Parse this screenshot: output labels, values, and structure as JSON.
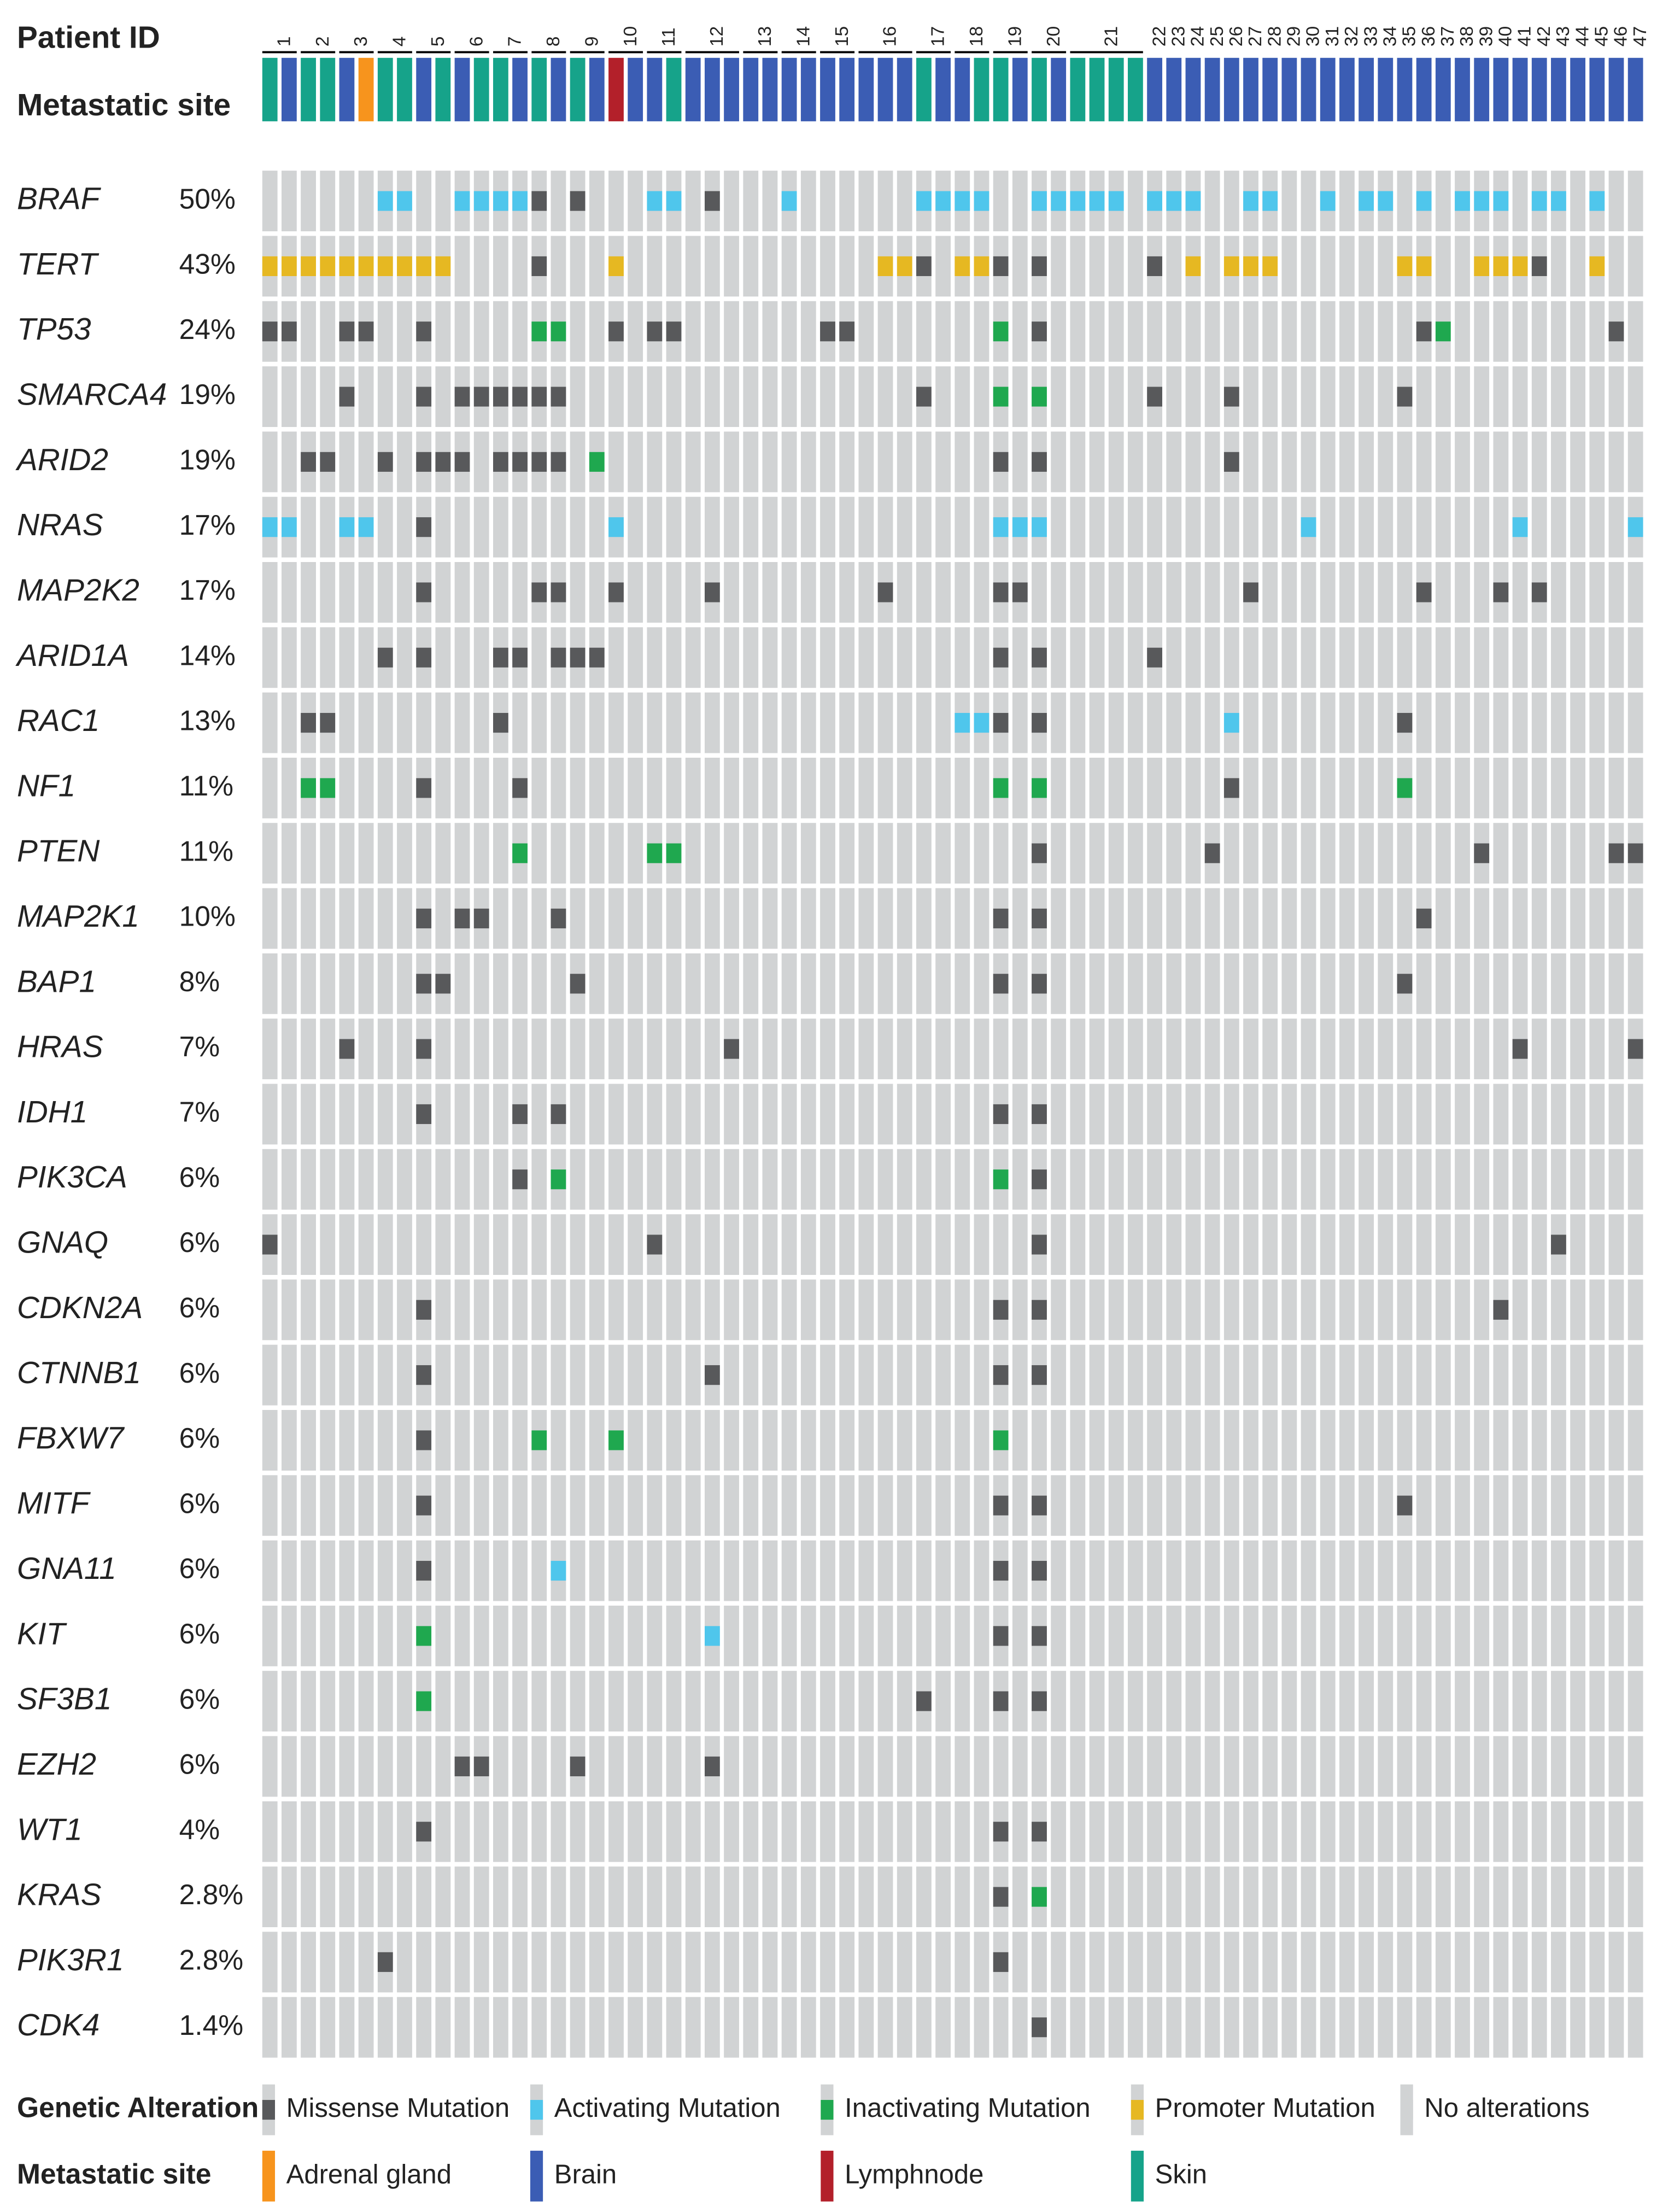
{
  "chart_data": {
    "type": "oncoprint",
    "patient_id_label": "Patient ID",
    "metastatic_site_label": "Metastatic site",
    "patients": [
      {
        "id": "1",
        "samples": 2
      },
      {
        "id": "2",
        "samples": 2
      },
      {
        "id": "3",
        "samples": 2
      },
      {
        "id": "4",
        "samples": 2
      },
      {
        "id": "5",
        "samples": 2
      },
      {
        "id": "6",
        "samples": 2
      },
      {
        "id": "7",
        "samples": 2
      },
      {
        "id": "8",
        "samples": 2
      },
      {
        "id": "9",
        "samples": 2
      },
      {
        "id": "10",
        "samples": 2
      },
      {
        "id": "11",
        "samples": 2
      },
      {
        "id": "12",
        "samples": 3
      },
      {
        "id": "13",
        "samples": 2
      },
      {
        "id": "14",
        "samples": 2
      },
      {
        "id": "15",
        "samples": 2
      },
      {
        "id": "16",
        "samples": 3
      },
      {
        "id": "17",
        "samples": 2
      },
      {
        "id": "18",
        "samples": 2
      },
      {
        "id": "19",
        "samples": 2
      },
      {
        "id": "20",
        "samples": 2
      },
      {
        "id": "21",
        "samples": 4
      },
      {
        "id": "22",
        "samples": 1
      },
      {
        "id": "23",
        "samples": 1
      },
      {
        "id": "24",
        "samples": 1
      },
      {
        "id": "25",
        "samples": 1
      },
      {
        "id": "26",
        "samples": 1
      },
      {
        "id": "27",
        "samples": 1
      },
      {
        "id": "28",
        "samples": 1
      },
      {
        "id": "29",
        "samples": 1
      },
      {
        "id": "30",
        "samples": 1
      },
      {
        "id": "31",
        "samples": 1
      },
      {
        "id": "32",
        "samples": 1
      },
      {
        "id": "33",
        "samples": 1
      },
      {
        "id": "34",
        "samples": 1
      },
      {
        "id": "35",
        "samples": 1
      },
      {
        "id": "36",
        "samples": 1
      },
      {
        "id": "37",
        "samples": 1
      },
      {
        "id": "38",
        "samples": 1
      },
      {
        "id": "39",
        "samples": 1
      },
      {
        "id": "40",
        "samples": 1
      },
      {
        "id": "41",
        "samples": 1
      },
      {
        "id": "42",
        "samples": 1
      },
      {
        "id": "43",
        "samples": 1
      },
      {
        "id": "44",
        "samples": 1
      },
      {
        "id": "45",
        "samples": 1
      },
      {
        "id": "46",
        "samples": 1
      },
      {
        "id": "47",
        "samples": 1
      }
    ],
    "metastatic_sites": [
      "Skin",
      "Brain",
      "Skin",
      "Skin",
      "Brain",
      "Adrenal gland",
      "Skin",
      "Skin",
      "Brain",
      "Skin",
      "Brain",
      "Skin",
      "Skin",
      "Brain",
      "Skin",
      "Brain",
      "Skin",
      "Brain",
      "Lymphnode",
      "Brain",
      "Brain",
      "Skin",
      "Brain",
      "Brain",
      "Brain",
      "Brain",
      "Brain",
      "Brain",
      "Brain",
      "Brain",
      "Brain",
      "Brain",
      "Brain",
      "Brain",
      "Skin",
      "Brain",
      "Brain",
      "Skin",
      "Skin",
      "Brain",
      "Skin",
      "Brain",
      "Skin",
      "Skin",
      "Skin",
      "Skin",
      "Brain",
      "Brain",
      "Brain",
      "Brain",
      "Brain",
      "Brain",
      "Brain",
      "Brain",
      "Brain",
      "Brain",
      "Brain",
      "Brain",
      "Brain",
      "Brain",
      "Brain",
      "Brain",
      "Brain",
      "Brain",
      "Brain",
      "Brain",
      "Brain",
      "Brain",
      "Brain",
      "Brain",
      "Brain",
      "Brain"
    ],
    "genes": [
      {
        "name": "BRAF",
        "frequency": "50%",
        "alterations": {
          "Missense Mutation": [
            14,
            16,
            23
          ],
          "Activating Mutation": [
            6,
            7,
            10,
            11,
            12,
            13,
            20,
            21,
            27,
            34,
            35,
            36,
            37,
            40,
            41,
            42,
            43,
            44,
            46,
            47,
            48,
            51,
            52,
            55,
            57,
            58,
            60,
            62,
            63,
            64,
            66,
            67,
            69
          ]
        }
      },
      {
        "name": "TERT",
        "frequency": "43%",
        "alterations": {
          "Promoter Mutation": [
            0,
            1,
            2,
            3,
            4,
            5,
            6,
            7,
            8,
            9,
            18,
            32,
            33,
            36,
            37,
            48,
            50,
            51,
            52,
            59,
            60,
            63,
            64,
            65,
            69
          ],
          "Missense Mutation": [
            14,
            34,
            38,
            40,
            46,
            66
          ]
        }
      },
      {
        "name": "TP53",
        "frequency": "24%",
        "alterations": {
          "Missense Mutation": [
            0,
            1,
            4,
            5,
            8,
            18,
            20,
            21,
            29,
            30,
            40,
            60,
            70
          ],
          "Inactivating Mutation": [
            14,
            15,
            38,
            61
          ]
        }
      },
      {
        "name": "SMARCA4",
        "frequency": "19%",
        "alterations": {
          "Missense Mutation": [
            4,
            8,
            10,
            11,
            12,
            13,
            14,
            15,
            34,
            46,
            50,
            59
          ],
          "Inactivating Mutation": [
            38,
            40
          ]
        }
      },
      {
        "name": "ARID2",
        "frequency": "19%",
        "alterations": {
          "Missense Mutation": [
            2,
            3,
            6,
            8,
            9,
            10,
            12,
            13,
            14,
            15,
            38,
            40,
            50
          ],
          "Inactivating Mutation": [
            17
          ]
        }
      },
      {
        "name": "NRAS",
        "frequency": "17%",
        "alterations": {
          "Activating Mutation": [
            0,
            1,
            4,
            5,
            18,
            38,
            39,
            40,
            54,
            65,
            71
          ],
          "Missense Mutation": [
            8
          ]
        }
      },
      {
        "name": "MAP2K2",
        "frequency": "17%",
        "alterations": {
          "Missense Mutation": [
            8,
            14,
            15,
            18,
            23,
            32,
            38,
            39,
            51,
            60,
            64,
            66
          ]
        }
      },
      {
        "name": "ARID1A",
        "frequency": "14%",
        "alterations": {
          "Missense Mutation": [
            6,
            8,
            12,
            13,
            15,
            16,
            17,
            38,
            40,
            46
          ]
        }
      },
      {
        "name": "RAC1",
        "frequency": "13%",
        "alterations": {
          "Missense Mutation": [
            2,
            3,
            12,
            38,
            40,
            59
          ],
          "Activating Mutation": [
            36,
            37,
            50
          ]
        }
      },
      {
        "name": "NF1",
        "frequency": "11%",
        "alterations": {
          "Missense Mutation": [
            8,
            13,
            50
          ],
          "Inactivating Mutation": [
            2,
            3,
            38,
            40,
            59
          ]
        }
      },
      {
        "name": "PTEN",
        "frequency": "11%",
        "alterations": {
          "Missense Mutation": [
            40,
            49,
            63,
            70,
            71
          ],
          "Inactivating Mutation": [
            13,
            20,
            21
          ]
        }
      },
      {
        "name": "MAP2K1",
        "frequency": "10%",
        "alterations": {
          "Missense Mutation": [
            8,
            10,
            11,
            15,
            38,
            40,
            60
          ]
        }
      },
      {
        "name": "BAP1",
        "frequency": "8%",
        "alterations": {
          "Missense Mutation": [
            8,
            9,
            16,
            38,
            40,
            59
          ]
        }
      },
      {
        "name": "HRAS",
        "frequency": "7%",
        "alterations": {
          "Missense Mutation": [
            4,
            8,
            24,
            65,
            71
          ]
        }
      },
      {
        "name": "IDH1",
        "frequency": "7%",
        "alterations": {
          "Missense Mutation": [
            8,
            13,
            15,
            38,
            40
          ]
        }
      },
      {
        "name": "PIK3CA",
        "frequency": "6%",
        "alterations": {
          "Missense Mutation": [
            13,
            40
          ],
          "Inactivating Mutation": [
            15,
            38
          ]
        }
      },
      {
        "name": "GNAQ",
        "frequency": "6%",
        "alterations": {
          "Missense Mutation": [
            0,
            20,
            40,
            67
          ]
        }
      },
      {
        "name": "CDKN2A",
        "frequency": "6%",
        "alterations": {
          "Missense Mutation": [
            8,
            38,
            40,
            64
          ]
        }
      },
      {
        "name": "CTNNB1",
        "frequency": "6%",
        "alterations": {
          "Missense Mutation": [
            8,
            23,
            38,
            40
          ]
        }
      },
      {
        "name": "FBXW7",
        "frequency": "6%",
        "alterations": {
          "Missense Mutation": [
            8
          ],
          "Inactivating Mutation": [
            14,
            18,
            38
          ]
        }
      },
      {
        "name": "MITF",
        "frequency": "6%",
        "alterations": {
          "Missense Mutation": [
            8,
            38,
            40,
            59
          ]
        }
      },
      {
        "name": "GNA11",
        "frequency": "6%",
        "alterations": {
          "Missense Mutation": [
            8,
            38,
            40
          ],
          "Activating Mutation": [
            15
          ]
        }
      },
      {
        "name": "KIT",
        "frequency": "6%",
        "alterations": {
          "Missense Mutation": [
            38,
            40
          ],
          "Activating Mutation": [
            23
          ],
          "Inactivating Mutation": [
            8
          ]
        }
      },
      {
        "name": "SF3B1",
        "frequency": "6%",
        "alterations": {
          "Missense Mutation": [
            34,
            38,
            40
          ],
          "Inactivating Mutation": [
            8
          ]
        }
      },
      {
        "name": "EZH2",
        "frequency": "6%",
        "alterations": {
          "Missense Mutation": [
            10,
            11,
            16,
            23
          ]
        }
      },
      {
        "name": "WT1",
        "frequency": "4%",
        "alterations": {
          "Missense Mutation": [
            8,
            38,
            40
          ]
        }
      },
      {
        "name": "KRAS",
        "frequency": "2.8%",
        "alterations": {
          "Missense Mutation": [
            38
          ],
          "Inactivating Mutation": [
            40
          ]
        }
      },
      {
        "name": "PIK3R1",
        "frequency": "2.8%",
        "alterations": {
          "Missense Mutation": [
            6,
            38
          ]
        }
      },
      {
        "name": "CDK4",
        "frequency": "1.4%",
        "alterations": {
          "Missense Mutation": [
            40
          ]
        }
      }
    ],
    "alteration_legend": {
      "title": "Genetic Alteration",
      "items": [
        {
          "label": "Missense Mutation",
          "color": "#58595b"
        },
        {
          "label": "Activating Mutation",
          "color": "#4fc6ec"
        },
        {
          "label": "Inactivating Mutation",
          "color": "#1fa84f"
        },
        {
          "label": "Promoter Mutation",
          "color": "#e6b822"
        },
        {
          "label": "No alterations",
          "color": "#d1d3d4"
        }
      ]
    },
    "site_legend": {
      "title": "Metastatic site",
      "items": [
        {
          "label": "Adrenal gland",
          "color": "#f7941d"
        },
        {
          "label": "Brain",
          "color": "#3b5db4"
        },
        {
          "label": "Lymphnode",
          "color": "#b3202a"
        },
        {
          "label": "Skin",
          "color": "#16a38a"
        }
      ]
    }
  }
}
